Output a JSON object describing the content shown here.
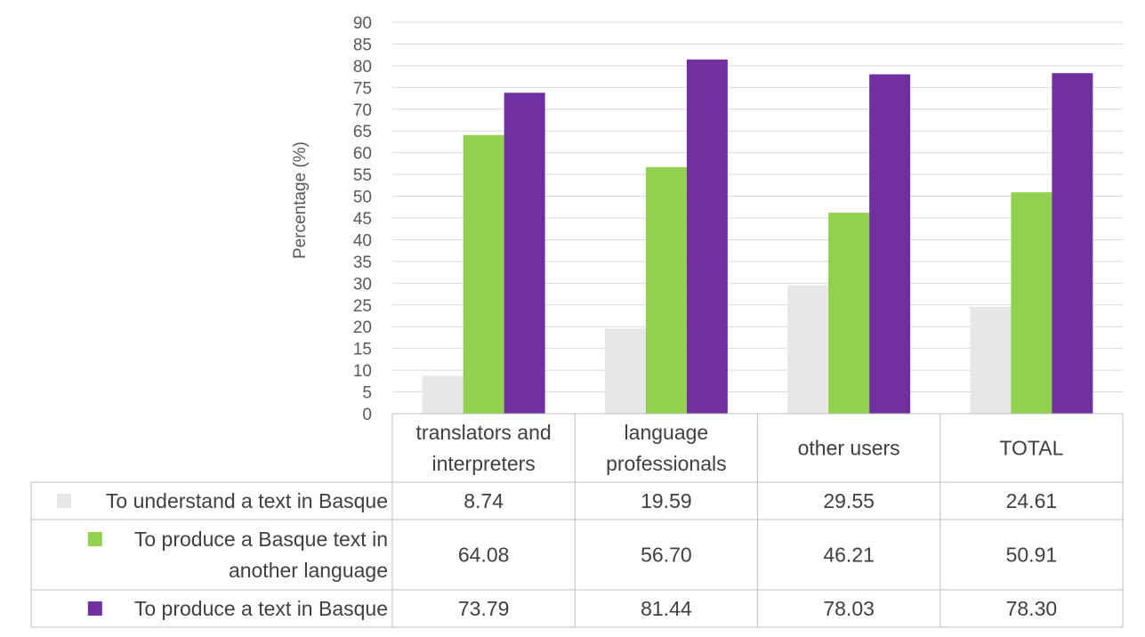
{
  "chart_data": {
    "type": "bar",
    "title": "",
    "xlabel": "",
    "ylabel": "Percentage (%)",
    "ylim": [
      0,
      90
    ],
    "ytick_step": 5,
    "grid": true,
    "categories": [
      [
        "translators and",
        "interpreters"
      ],
      [
        "language",
        "professionals"
      ],
      [
        "other users"
      ],
      [
        "TOTAL"
      ]
    ],
    "series": [
      {
        "name": [
          "To understand a text in Basque"
        ],
        "color": "#e7e7e7",
        "values": [
          8.74,
          19.59,
          29.55,
          24.61
        ],
        "labels": [
          "8.74",
          "19.59",
          "29.55",
          "24.61"
        ]
      },
      {
        "name": [
          "To produce a Basque text in",
          "another language"
        ],
        "color": "#92d050",
        "values": [
          64.08,
          56.7,
          46.21,
          50.91
        ],
        "labels": [
          "64.08",
          "56.70",
          "46.21",
          "50.91"
        ]
      },
      {
        "name": [
          "To produce a text in Basque"
        ],
        "color": "#7030a0",
        "values": [
          73.79,
          81.44,
          78.03,
          78.3
        ],
        "labels": [
          "73.79",
          "81.44",
          "78.03",
          "78.30"
        ]
      }
    ],
    "legend_placement": "data-table"
  }
}
